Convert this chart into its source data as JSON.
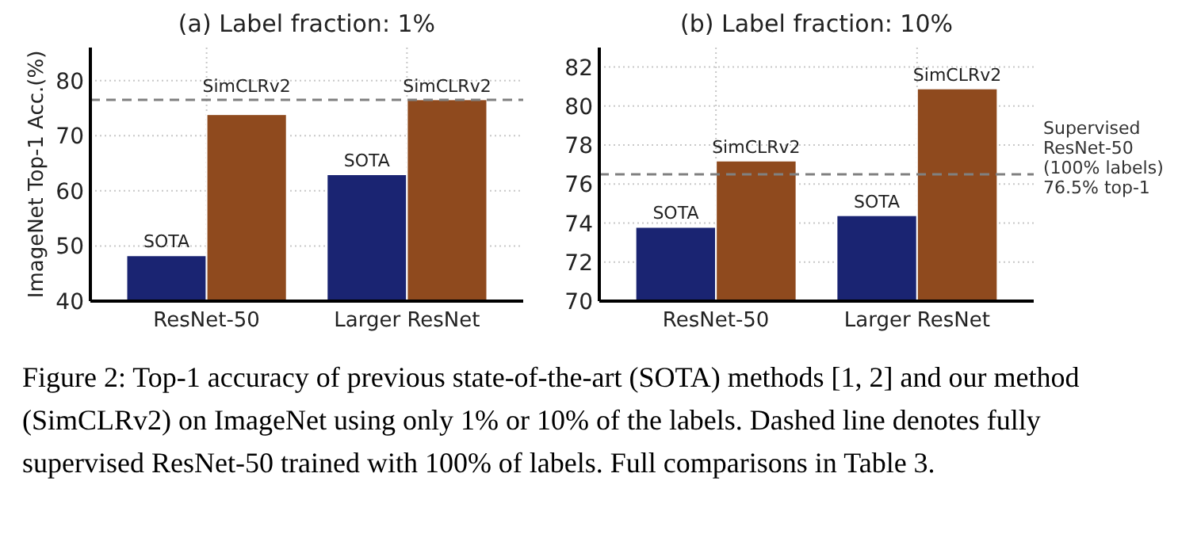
{
  "chart_data": [
    {
      "type": "bar",
      "title": "(a) Label fraction: 1%",
      "ylabel": "ImageNet Top-1 Acc.(%)",
      "categories": [
        "ResNet-50",
        "Larger ResNet"
      ],
      "series": [
        {
          "name": "SOTA",
          "color": "#1a2472",
          "values": [
            48.3,
            63.0
          ]
        },
        {
          "name": "SimCLRv2",
          "color": "#8f4a1e",
          "values": [
            73.9,
            76.6
          ]
        }
      ],
      "ylim": [
        40,
        86
      ],
      "yticks": [
        40,
        50,
        60,
        70,
        80
      ],
      "grid": true,
      "ref_lines": [
        {
          "axis": "y",
          "value": 76.5,
          "color": "#808080",
          "line_style": "dashed"
        }
      ],
      "annotations": [
        "Figure 2:  Top-1 accuracy of previous state-of-the-art (SOTA) methods [1, 2] and our method (SimCLRv2) on ImageNet using only 1% or 10% of the labels. Dashed line denotes fully supervised ResNet-50 trained with 100% of labels. Full comparisons in Table  3."
      ]
    },
    {
      "type": "bar",
      "title": "(b) Label fraction: 10%",
      "categories": [
        "ResNet-50",
        "Larger ResNet"
      ],
      "series": [
        {
          "name": "SOTA",
          "color": "#1a2472",
          "values": [
            73.8,
            74.4
          ]
        },
        {
          "name": "SimCLRv2",
          "color": "#8f4a1e",
          "values": [
            77.2,
            80.9
          ]
        }
      ],
      "ylim": [
        70,
        83
      ],
      "yticks": [
        70,
        72,
        74,
        76,
        78,
        80,
        82
      ],
      "grid": true,
      "ref_lines": [
        {
          "axis": "y",
          "value": 76.5,
          "color": "#808080",
          "line_style": "dashed",
          "label": "Supervised ResNet-50 (100% labels) 76.5% top-1"
        }
      ]
    }
  ]
}
